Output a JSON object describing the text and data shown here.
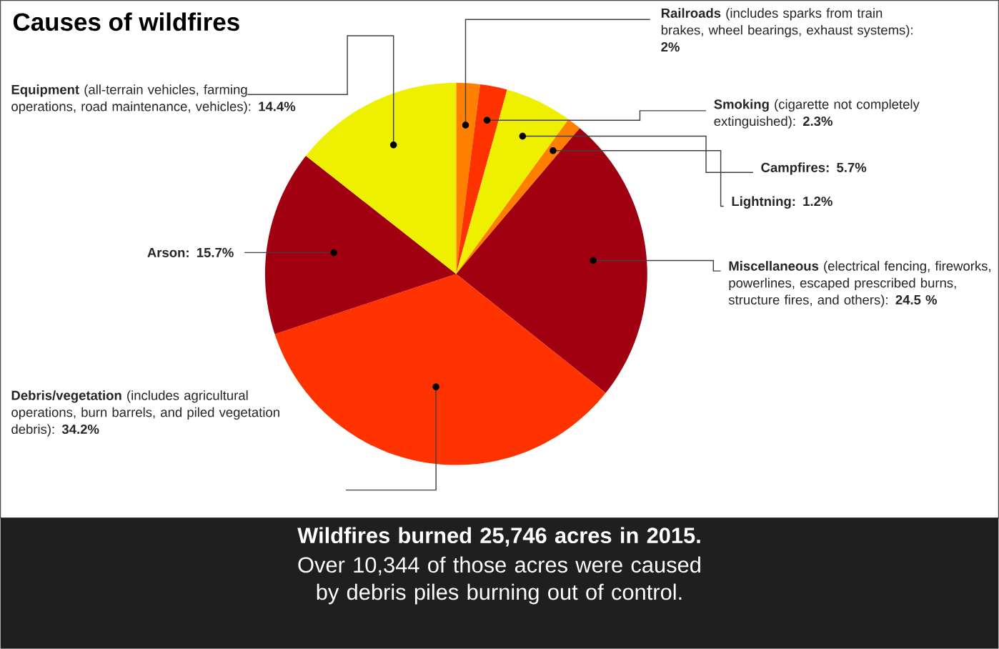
{
  "chart_data": {
    "type": "pie",
    "title": "Causes of wildfires",
    "categories": [
      "**Railroads** (includes sparks from train brakes, wheel bearings, exhaust systems): **2%**",
      "**Smoking** (cigarette not completely extinguished): **2.3%**",
      "**Campfires: 5.7%**",
      "**Lightning: 1.2%**",
      "**Miscellaneous** (electrical fencing, fireworks, powerlines, escaped prescribed burns, structure fires, and others): **24.5  %**",
      "**Debris/vegetation** (includes agricultural operations, burn barrels, and piled vegetation debris): **34.2%**",
      "**Arson: 15.7%**",
      "**Equipment** (all-terrain vehicles, farming operations, road maintenance, vehicles): **14.4%**"
    ],
    "values": [
      2,
      2.3,
      5.7,
      1.2,
      24.5,
      34.2,
      15.7,
      14.4
    ],
    "colors": [
      "#ff8000",
      "#ff3300",
      "#eef000",
      "#ff8000",
      "#a00010",
      "#ff3300",
      "#a00010",
      "#eef000"
    ],
    "annotations": [
      "Wildfires burned 25,746 acres in 2015.",
      "Over 10,344 of those acres were caused by debris piles burning out of control."
    ]
  }
}
